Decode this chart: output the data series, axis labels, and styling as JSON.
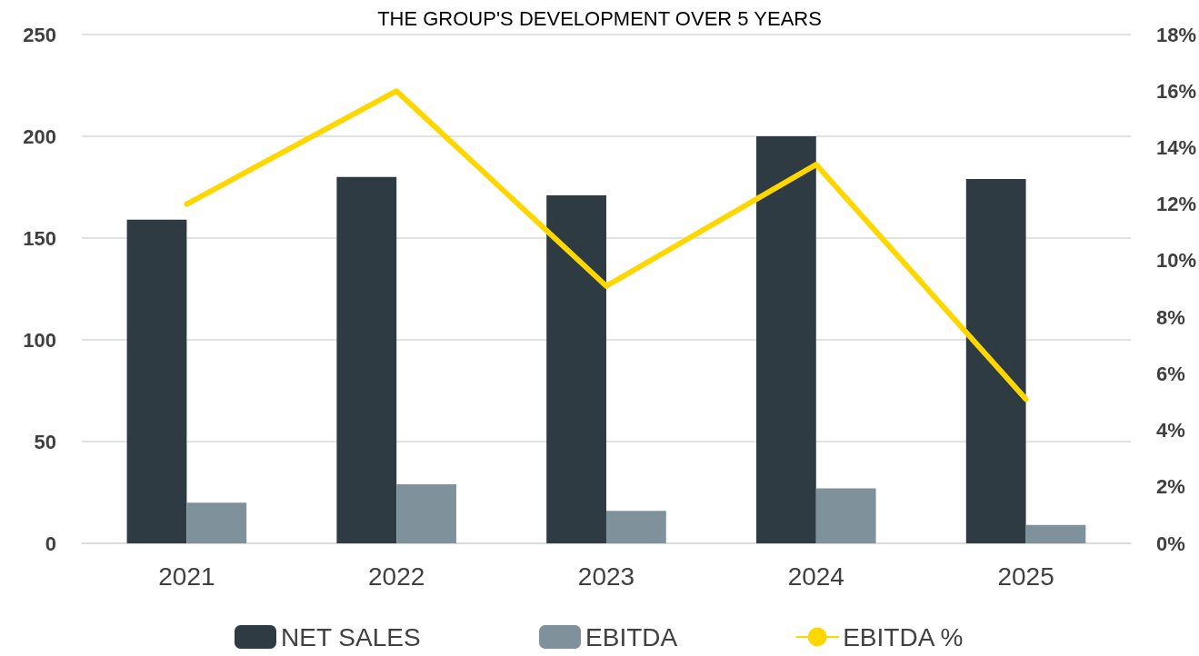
{
  "chart_data": {
    "type": "bar",
    "title": "THE GROUP'S DEVELOPMENT OVER 5 YEARS",
    "categories": [
      "2021",
      "2022",
      "2023",
      "2024",
      "2025"
    ],
    "series": [
      {
        "name": "NET SALES",
        "color": "#2e3b43",
        "values": [
          159,
          180,
          171,
          200,
          179
        ]
      },
      {
        "name": "EBITDA",
        "color": "#7f929b",
        "values": [
          20,
          29,
          16,
          27,
          9
        ]
      },
      {
        "name": "EBITDA %",
        "type": "line",
        "axis": "y2",
        "color": "#ffd700",
        "values": [
          12.0,
          16.0,
          9.1,
          13.4,
          5.1
        ]
      }
    ],
    "ylim": [
      0,
      250
    ],
    "yticks": [
      0,
      50,
      100,
      150,
      200,
      250
    ],
    "y2lim": [
      0,
      18
    ],
    "y2ticks": [
      {
        "value": 0,
        "label": "0%"
      },
      {
        "value": 2,
        "label": "2%"
      },
      {
        "value": 4,
        "label": "4%"
      },
      {
        "value": 6,
        "label": "6%"
      },
      {
        "value": 8,
        "label": "8%"
      },
      {
        "value": 10,
        "label": "10%"
      },
      {
        "value": 12,
        "label": "12%"
      },
      {
        "value": 14,
        "label": "14%"
      },
      {
        "value": 16,
        "label": "16%"
      },
      {
        "value": 18,
        "label": "18%"
      }
    ],
    "grid": "y",
    "legend": "bottom",
    "marker": "none",
    "line_style": "solid"
  }
}
